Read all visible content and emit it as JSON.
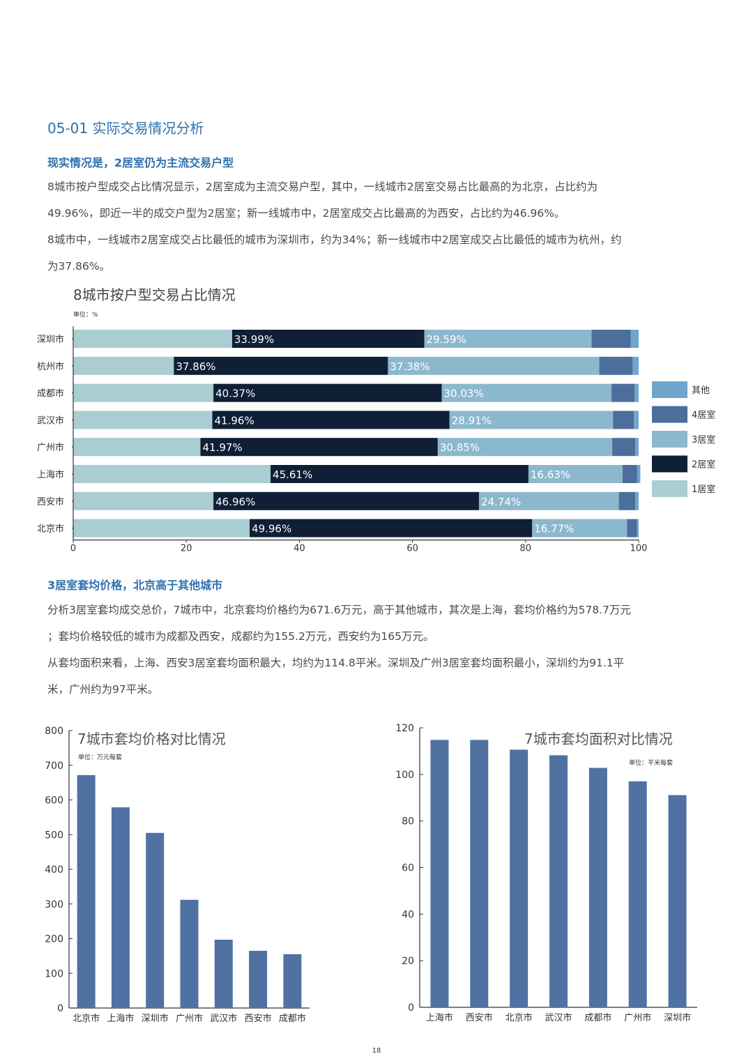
{
  "colors": {
    "heading": "#2f6fae",
    "one_bedroom": "#a9cdd0",
    "two_bedroom": "#0e1f36",
    "three_bedroom": "#8cb8ce",
    "four_bedroom": "#4c6e9c",
    "other": "#6fa6cc",
    "bar": "#4f72a2"
  },
  "section_title": "05-01  实际交易情况分析",
  "sub1": "现实情况是，2居室仍为主流交易户型",
  "para1": [
    "8城市按户型成交占比情况显示，2居室成为主流交易户型，其中，一线城市2居室交易占比最高的为北京，占比约为",
    "49.96%，即近一半的成交户型为2居室；新一线城市中，2居室成交占比最高的为西安，占比约为46.96%。",
    "8城市中，一线城市2居室成交占比最低的城市为深圳市，约为34%；新一线城市中2居室成交占比最低的城市为杭州，约",
    "为37.86%。"
  ],
  "sub2": "3居室套均价格，北京高于其他城市",
  "para2": [
    "分析3居室套均成交总价，7城市中，北京套均价格约为671.6万元，高于其他城市，其次是上海，套均价格约为578.7万元",
    "；套均价格较低的城市为成都及西安，成都约为155.2万元，西安约为165万元。",
    "从套均面积来看，上海、西安3居室套均面积最大，均约为114.8平米。深圳及广州3居室套均面积最小，深圳约为91.1平",
    "米，广州约为97平米。"
  ],
  "page_number": "18",
  "chart_data": [
    {
      "type": "bar",
      "orientation": "horizontal",
      "stacked": true,
      "title": "8城市按户型交易占比情况",
      "unit": "单位：%",
      "categories": [
        "深圳市",
        "杭州市",
        "成都市",
        "武汉市",
        "广州市",
        "上海市",
        "西安市",
        "北京市"
      ],
      "series": [
        {
          "name": "1居室",
          "values": [
            28.1,
            17.8,
            24.8,
            24.6,
            22.5,
            34.9,
            24.8,
            31.2
          ]
        },
        {
          "name": "2居室",
          "values": [
            33.99,
            37.86,
            40.37,
            41.96,
            41.97,
            45.61,
            46.96,
            49.96
          ],
          "labels": [
            "33.99%",
            "37.86%",
            "40.37%",
            "41.96%",
            "41.97%",
            "45.61%",
            "46.96%",
            "49.96%"
          ]
        },
        {
          "name": "3居室",
          "values": [
            29.59,
            37.38,
            30.03,
            28.91,
            30.85,
            16.63,
            24.74,
            16.77
          ],
          "labels": [
            "29.59%",
            "37.38%",
            "30.03%",
            "28.91%",
            "30.85%",
            "16.63%",
            "24.74%",
            "16.77%"
          ]
        },
        {
          "name": "4居室",
          "values": [
            6.9,
            5.9,
            4.1,
            3.7,
            4.1,
            2.6,
            2.9,
            1.8
          ]
        },
        {
          "name": "其他",
          "values": [
            1.42,
            1.06,
            0.7,
            0.83,
            0.58,
            0.56,
            0.6,
            0.27
          ]
        }
      ],
      "legend": [
        "其他",
        "4居室",
        "3居室",
        "2居室",
        "1居室"
      ],
      "legend_position": "right",
      "xlim": [
        0,
        100
      ],
      "xticks": [
        "0",
        "20",
        "40",
        "60",
        "80",
        "100"
      ]
    },
    {
      "type": "bar",
      "title": "7城市套均价格对比情况",
      "unit": "单位：万元每套",
      "categories": [
        "北京市",
        "上海市",
        "深圳市",
        "广州市",
        "武汉市",
        "西安市",
        "成都市"
      ],
      "values": [
        671.6,
        578.7,
        505,
        312,
        197,
        165,
        155.2
      ],
      "ylim": [
        0,
        800
      ],
      "yticks": [
        "0",
        "100",
        "200",
        "300",
        "400",
        "500",
        "600",
        "700",
        "800"
      ]
    },
    {
      "type": "bar",
      "title": "7城市套均面积对比情况",
      "unit": "单位：平米每套",
      "categories": [
        "上海市",
        "西安市",
        "北京市",
        "武汉市",
        "成都市",
        "广州市",
        "深圳市"
      ],
      "values": [
        114.8,
        114.8,
        110.6,
        108.2,
        102.8,
        97,
        91.1
      ],
      "ylim": [
        0,
        120
      ],
      "yticks": [
        "0",
        "20",
        "40",
        "60",
        "80",
        "100",
        "120"
      ]
    }
  ]
}
